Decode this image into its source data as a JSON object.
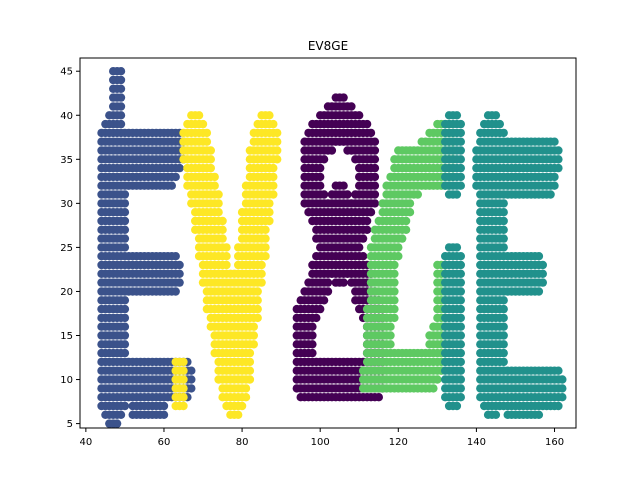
{
  "chart_data": {
    "type": "scatter",
    "title": "EV8GE",
    "xlabel": "",
    "ylabel": "",
    "xlim": [
      38.5,
      165.5
    ],
    "ylim": [
      4.5,
      46.5
    ],
    "xticks": [
      40,
      60,
      80,
      100,
      120,
      140,
      160
    ],
    "yticks": [
      5,
      10,
      15,
      20,
      25,
      30,
      35,
      40,
      45
    ],
    "grid": false,
    "legend": "none",
    "series": [
      {
        "color": "#3b528b",
        "strokes": [
          {
            "points": [
              [
                48,
                44
              ],
              [
                48,
                37
              ]
            ],
            "r": 1
          },
          {
            "points": [
              [
                47,
                37
              ],
              [
                47,
                8
              ]
            ],
            "r": 3
          },
          {
            "points": [
              [
                46,
                36
              ],
              [
                63,
                36
              ]
            ],
            "r": 2
          },
          {
            "points": [
              [
                46,
                34
              ],
              [
                61,
                34
              ]
            ],
            "r": 2
          },
          {
            "points": [
              [
                48,
                22
              ],
              [
                62,
                22
              ]
            ],
            "r": 2
          },
          {
            "points": [
              [
                47,
                10
              ],
              [
                65,
                10
              ]
            ],
            "r": 2
          },
          {
            "points": [
              [
                53,
                7
              ],
              [
                59,
                7
              ]
            ],
            "r": 1
          },
          {
            "points": [
              [
                63,
                9
              ],
              [
                64,
                11
              ]
            ],
            "r": 1
          }
        ]
      },
      {
        "color": "#fde725",
        "strokes": [
          {
            "points": [
              [
                68,
                37
              ],
              [
                78,
                9
              ]
            ],
            "r": 3
          },
          {
            "points": [
              [
                86,
                37
              ],
              [
                78,
                9
              ]
            ],
            "r": 3
          },
          {
            "points": [
              [
                66,
                37
              ],
              [
                70,
                37
              ]
            ],
            "r": 1
          },
          {
            "points": [
              [
                64,
                8
              ],
              [
                64,
                11
              ]
            ],
            "r": 1
          }
        ]
      },
      {
        "color": "#440154",
        "strokes": [
          {
            "points": [
              [
                105,
                40
              ],
              [
                98,
                36
              ]
            ],
            "r": 2
          },
          {
            "points": [
              [
                105,
                40
              ],
              [
                112,
                36
              ]
            ],
            "r": 2
          },
          {
            "points": [
              [
                98,
                36
              ],
              [
                98,
                31
              ]
            ],
            "r": 2
          },
          {
            "points": [
              [
                112,
                36
              ],
              [
                112,
                31
              ]
            ],
            "r": 2
          },
          {
            "points": [
              [
                98,
                31
              ],
              [
                103,
                25
              ]
            ],
            "r": 2
          },
          {
            "points": [
              [
                112,
                31
              ],
              [
                107,
                25
              ]
            ],
            "r": 2
          },
          {
            "points": [
              [
                103,
                25
              ],
              [
                96,
                17
              ]
            ],
            "r": 2
          },
          {
            "points": [
              [
                107,
                25
              ],
              [
                114,
                17
              ]
            ],
            "r": 2
          },
          {
            "points": [
              [
                96,
                17
              ],
              [
                96,
                11
              ]
            ],
            "r": 2
          },
          {
            "points": [
              [
                114,
                17
              ],
              [
                114,
                11
              ]
            ],
            "r": 2
          },
          {
            "points": [
              [
                96,
                10
              ],
              [
                114,
                10
              ]
            ],
            "r": 2
          },
          {
            "points": [
              [
                105,
                30
              ],
              [
                105,
                23
              ]
            ],
            "r": 2
          }
        ]
      },
      {
        "color": "#5ec962",
        "strokes": [
          {
            "points": [
              [
                132,
                37
              ],
              [
                121,
                32
              ]
            ],
            "r": 2
          },
          {
            "points": [
              [
                121,
                34
              ],
              [
                132,
                34
              ]
            ],
            "r": 2
          },
          {
            "points": [
              [
                121,
                32
              ],
              [
                116,
                24
              ]
            ],
            "r": 3
          },
          {
            "points": [
              [
                116,
                24
              ],
              [
                115,
                12
              ]
            ],
            "r": 3
          },
          {
            "points": [
              [
                114,
                11
              ],
              [
                128,
                11
              ]
            ],
            "r": 2
          },
          {
            "points": [
              [
                128,
                11
              ],
              [
                131,
                15
              ]
            ],
            "r": 2
          },
          {
            "points": [
              [
                131,
                14
              ],
              [
                131,
                22
              ]
            ],
            "r": 1
          },
          {
            "points": [
              [
                112,
                10
              ],
              [
                114,
                10
              ]
            ],
            "r": 1
          }
        ]
      },
      {
        "color": "#21918c",
        "strokes": [
          {
            "points": [
              [
                134,
                38
              ],
              [
                134,
                33
              ]
            ],
            "r": 2
          },
          {
            "points": [
              [
                134,
                23
              ],
              [
                134,
                9
              ]
            ],
            "r": 2
          },
          {
            "points": [
              [
                144,
                37
              ],
              [
                144,
                9
              ]
            ],
            "r": 3
          },
          {
            "points": [
              [
                142,
                35
              ],
              [
                159,
                35
              ]
            ],
            "r": 2
          },
          {
            "points": [
              [
                142,
                33
              ],
              [
                158,
                33
              ]
            ],
            "r": 2
          },
          {
            "points": [
              [
                144,
                22
              ],
              [
                155,
                22
              ]
            ],
            "r": 2
          },
          {
            "points": [
              [
                144,
                9
              ],
              [
                160,
                9
              ]
            ],
            "r": 2
          },
          {
            "points": [
              [
                149,
                7
              ],
              [
                155,
                7
              ]
            ],
            "r": 1
          }
        ]
      }
    ]
  }
}
